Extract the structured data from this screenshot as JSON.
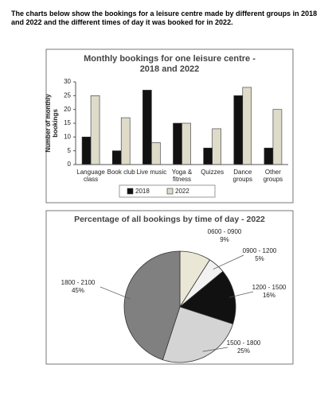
{
  "prompt": "The charts below show the bookings for a leisure centre made by different groups in 2018 and 2022 and the different times of day it was booked for in 2022.",
  "chart_data": [
    {
      "type": "bar",
      "title": "Monthly bookings for one leisure centre - 2018 and 2022",
      "y_label": "Number of monthly bookings",
      "categories": [
        "Language class",
        "Book club",
        "Live music",
        "Yoga & fitness",
        "Quizzes",
        "Dance groups",
        "Other groups"
      ],
      "series": [
        {
          "name": "2018",
          "color": "#111111",
          "values": [
            10,
            5,
            27,
            15,
            6,
            25,
            6
          ]
        },
        {
          "name": "2022",
          "color": "#dedbc9",
          "values": [
            25,
            17,
            8,
            15,
            13,
            28,
            20
          ]
        }
      ],
      "ylim": [
        0,
        30
      ],
      "yticks": [
        0,
        5,
        10,
        15,
        20,
        25,
        30
      ],
      "grid": false,
      "legend": "bottom"
    },
    {
      "type": "pie",
      "title": "Percentage of all bookings by time of day - 2022",
      "categories": [
        "0600 - 0900",
        "0900 - 1200",
        "1200 - 1500",
        "1500 - 1800",
        "1800 - 2100"
      ],
      "values": [
        9,
        5,
        16,
        25,
        45
      ],
      "value_labels": [
        "9%",
        "5%",
        "16%",
        "25%",
        "45%"
      ],
      "colors": [
        "#ebe7d6",
        "#f2f2f2",
        "#111111",
        "#d4d4d4",
        "#808080"
      ]
    }
  ]
}
